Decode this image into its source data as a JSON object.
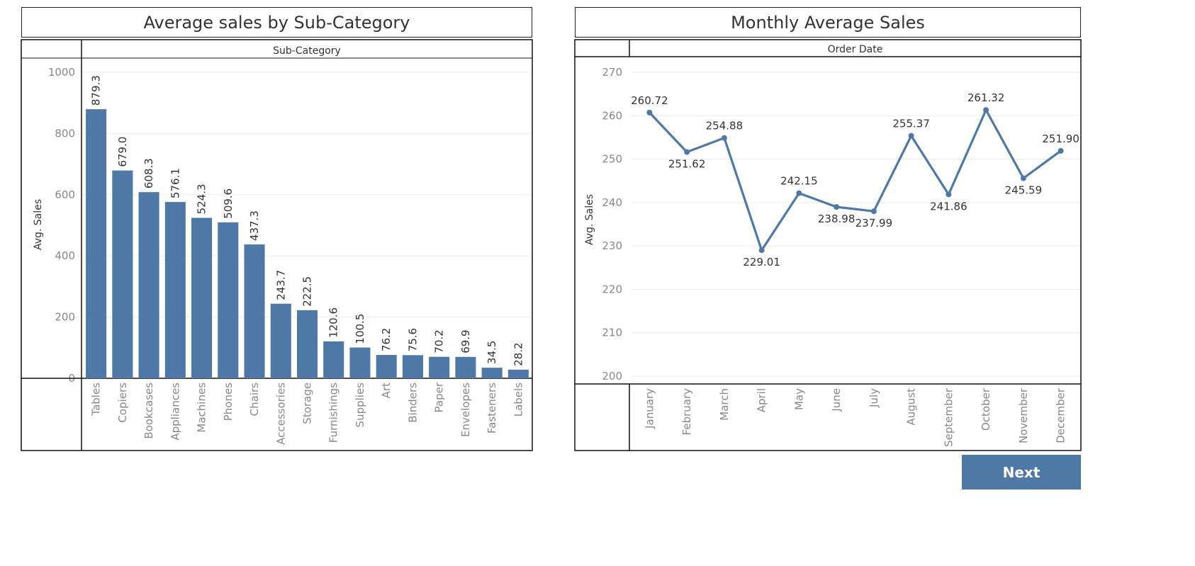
{
  "chart_data": [
    {
      "type": "bar",
      "title": "Average sales by Sub-Category",
      "header": "Sub-Category",
      "ylabel": "Avg. Sales",
      "xlabel": "",
      "ylim": [
        0,
        1000
      ],
      "yticks": [
        0,
        200,
        400,
        600,
        800,
        1000
      ],
      "grid": true,
      "color": "#4e79a7",
      "categories": [
        "Tables",
        "Copiers",
        "Bookcases",
        "Appliances",
        "Machines",
        "Phones",
        "Chairs",
        "Accessories",
        "Storage",
        "Furnishings",
        "Supplies",
        "Art",
        "Binders",
        "Paper",
        "Envelopes",
        "Fasteners",
        "Labels"
      ],
      "values": [
        879.3,
        679.0,
        608.3,
        576.1,
        524.3,
        509.6,
        437.3,
        243.7,
        222.5,
        120.6,
        100.5,
        76.2,
        75.6,
        70.2,
        69.9,
        34.5,
        28.2
      ],
      "data_labels": [
        "879.3",
        "679.0",
        "608.3",
        "576.1",
        "524.3",
        "509.6",
        "437.3",
        "243.7",
        "222.5",
        "120.6",
        "100.5",
        "76.2",
        "75.6",
        "70.2",
        "69.9",
        "34.5",
        "28.2"
      ]
    },
    {
      "type": "line",
      "title": "Monthly Average Sales",
      "header": "Order Date",
      "ylabel": "Avg. Sales",
      "xlabel": "",
      "ylim": [
        200,
        272
      ],
      "yticks": [
        200,
        210,
        220,
        230,
        240,
        250,
        260,
        270
      ],
      "grid": true,
      "color": "#4e79a7",
      "categories": [
        "January",
        "February",
        "March",
        "April",
        "May",
        "June",
        "July",
        "August",
        "September",
        "October",
        "November",
        "December"
      ],
      "values": [
        260.72,
        251.62,
        254.88,
        229.01,
        242.15,
        238.98,
        237.99,
        255.37,
        241.86,
        261.32,
        245.59,
        251.9
      ],
      "data_labels": [
        "260.72",
        "251.62",
        "254.88",
        "229.01",
        "242.15",
        "238.98",
        "237.99",
        "255.37",
        "241.86",
        "261.32",
        "245.59",
        "251.90"
      ],
      "label_position": [
        "above",
        "below",
        "above",
        "below",
        "above",
        "below",
        "below",
        "above",
        "below",
        "above",
        "below",
        "above"
      ]
    }
  ],
  "next_button": {
    "label": "Next"
  }
}
